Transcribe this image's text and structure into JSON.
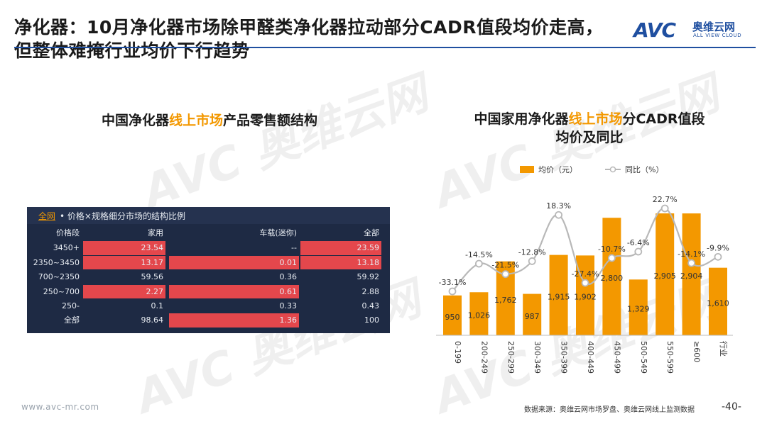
{
  "header": {
    "title": "净化器：10月净化器市场除甲醛类净化器拉动部分CADR值段均价走高，但整体难掩行业均价下行趋势",
    "logo_mark": "AVC",
    "logo_cn": "奥维云网",
    "logo_en": "ALL VIEW CLOUD"
  },
  "left_title": {
    "prefix": "中国净化器",
    "highlight": "线上市场",
    "suffix": "产品零售额结构"
  },
  "right_title": {
    "prefix": "中国家用净化器",
    "highlight": "线上市场",
    "suffix": "分CADR值段",
    "line2": "均价及同比"
  },
  "table": {
    "scope": "全网",
    "caption": "• 价格×规格细分市场的结构比例",
    "columns": [
      "价格段",
      "家用",
      "车载(迷你)",
      "全部"
    ],
    "rows": [
      {
        "label": "3450+",
        "cells": [
          "23.54",
          "--",
          "23.59"
        ],
        "red": [
          true,
          false,
          true
        ]
      },
      {
        "label": "2350~3450",
        "cells": [
          "13.17",
          "0.01",
          "13.18"
        ],
        "red": [
          true,
          true,
          true
        ]
      },
      {
        "label": "700~2350",
        "cells": [
          "59.56",
          "0.36",
          "59.92"
        ],
        "red": [
          false,
          false,
          false
        ]
      },
      {
        "label": "250~700",
        "cells": [
          "2.27",
          "0.61",
          "2.88"
        ],
        "red": [
          true,
          true,
          false
        ]
      },
      {
        "label": "250-",
        "cells": [
          "0.1",
          "0.33",
          "0.43"
        ],
        "red": [
          false,
          false,
          false
        ]
      },
      {
        "label": "全部",
        "cells": [
          "98.64",
          "1.36",
          "100"
        ],
        "red": [
          false,
          true,
          false
        ]
      }
    ],
    "highlight_color": "#e4474c",
    "panel_color": "#1e2a44"
  },
  "chart_data": {
    "type": "bar",
    "title": "中国家用净化器线上市场分CADR值段均价及同比",
    "categories": [
      "0-199",
      "200-249",
      "250-299",
      "300-349",
      "350-399",
      "400-449",
      "450-499",
      "500-549",
      "550-599",
      "≥600",
      "行业"
    ],
    "series": [
      {
        "name": "均价（元）",
        "type": "bar",
        "color": "#f39800",
        "values": [
          950,
          1026,
          1762,
          987,
          1915,
          1902,
          2800,
          1329,
          2905,
          2904,
          1610
        ],
        "labels": [
          "950",
          "1,026",
          "1,762",
          "987",
          "1,915",
          "1,902",
          "2,800",
          "1,329",
          "2,905",
          "2,904",
          "1,610"
        ]
      },
      {
        "name": "同比（%）",
        "type": "line",
        "color": "#b8b8b8",
        "values": [
          -33.1,
          -14.5,
          -21.5,
          -12.8,
          18.3,
          -27.4,
          -10.7,
          -6.4,
          22.7,
          -14.1,
          -9.9
        ],
        "labels": [
          "-33.1%",
          "-14.5%",
          "-21.5%",
          "-12.8%",
          "18.3%",
          "-27.4%",
          "-10.7%",
          "-6.4%",
          "22.7%",
          "-14.1%",
          "-9.9%"
        ]
      }
    ],
    "legend_position": "top",
    "grid": false
  },
  "footer": {
    "site": "www.avc-mr.com",
    "source": "数据来源：奥维云网市场罗盘、奥维云网线上监测数据",
    "page": "-40-"
  }
}
